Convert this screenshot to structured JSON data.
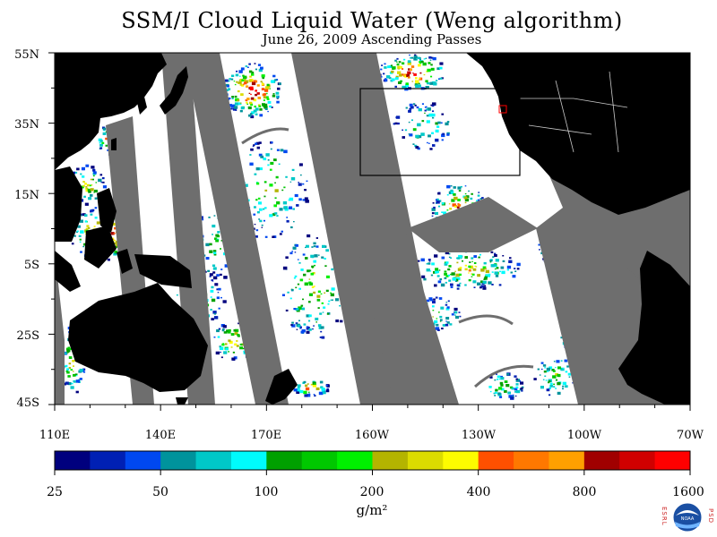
{
  "title": "SSM/I Cloud Liquid Water (Weng algorithm)",
  "subtitle": "June 26, 2009  Ascending Passes",
  "map": {
    "lat_labels": [
      "55N",
      "35N",
      "15N",
      "5S",
      "25S",
      "45S"
    ],
    "lon_labels": [
      "110E",
      "140E",
      "170E",
      "160W",
      "130W",
      "100W",
      "70W"
    ],
    "lat_range": [
      -45,
      55
    ],
    "lon_range_east_deg": [
      110,
      290
    ],
    "colors": {
      "land": "#000000",
      "no_data_gap": "#6e6e6e",
      "clear_ocean": "#ffffff",
      "box_outline": "#000000",
      "marker_outline": "#ff0000"
    }
  },
  "colorbar": {
    "labels": [
      "25",
      "50",
      "100",
      "200",
      "400",
      "800",
      "1600"
    ],
    "unit": "g/m²",
    "colors": [
      "#00007e",
      "#0020b4",
      "#0048f0",
      "#00939c",
      "#00c8c8",
      "#00fbfc",
      "#00a000",
      "#00c800",
      "#00f000",
      "#b4b400",
      "#dcdc00",
      "#fdfc00",
      "#ff5000",
      "#ff7800",
      "#ffa000",
      "#a00000",
      "#d00000",
      "#ff0000"
    ]
  },
  "logo": {
    "left_text": "ESRL",
    "right_text": "PSD",
    "center_text": "NOAA"
  }
}
